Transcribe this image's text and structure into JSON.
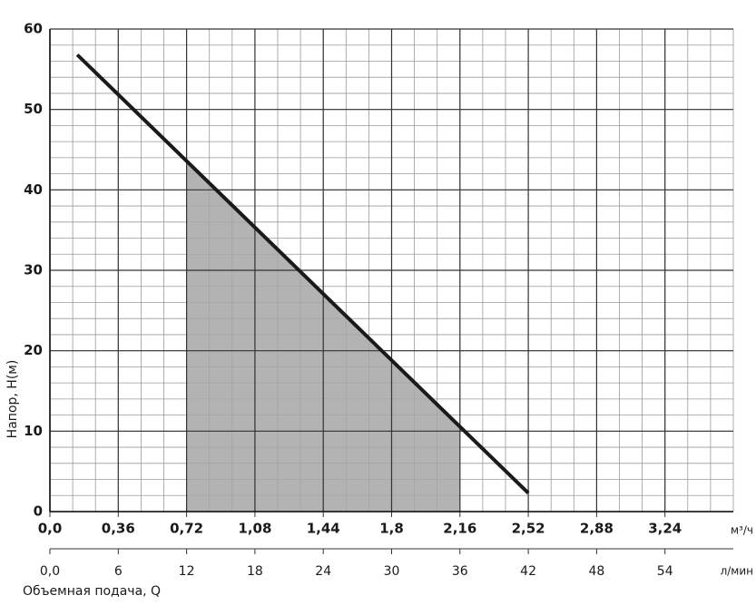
{
  "chart_data": {
    "type": "line",
    "ylabel": "Напор, H(м)",
    "xlabel": "Объемная подача, Q",
    "x_unit": "л/мин",
    "x2_unit": "м³/ч",
    "xlim": [
      0,
      60
    ],
    "xticks": [
      {
        "value": 0,
        "label": "0,0"
      },
      6,
      12,
      18,
      24,
      30,
      36,
      42,
      48,
      54
    ],
    "x2lim": [
      0,
      3.6
    ],
    "x2ticks": [
      {
        "value": 0,
        "label": "0,0"
      },
      {
        "value": 0.36,
        "label": "0,36"
      },
      {
        "value": 0.72,
        "label": "0,72"
      },
      {
        "value": 1.08,
        "label": "1,08"
      },
      {
        "value": 1.44,
        "label": "1,44"
      },
      {
        "value": 1.8,
        "label": "1,8"
      },
      {
        "value": 2.16,
        "label": "2,16"
      },
      {
        "value": 2.52,
        "label": "2,52"
      },
      {
        "value": 2.88,
        "label": "2,88"
      },
      {
        "value": 3.24,
        "label": "3,24"
      }
    ],
    "ylim": [
      0,
      60
    ],
    "yticks": [
      0,
      10,
      20,
      30,
      40,
      50,
      60
    ],
    "grid": true,
    "minor_grid": {
      "x": 2,
      "y": 2
    },
    "series": [
      {
        "color": "#1a1a1a",
        "x": [
          2.4,
          42
        ],
        "values": [
          56.8,
          2.3
        ]
      }
    ],
    "shade": {
      "x": [
        12,
        36
      ],
      "color": "#a6a6a6"
    }
  }
}
